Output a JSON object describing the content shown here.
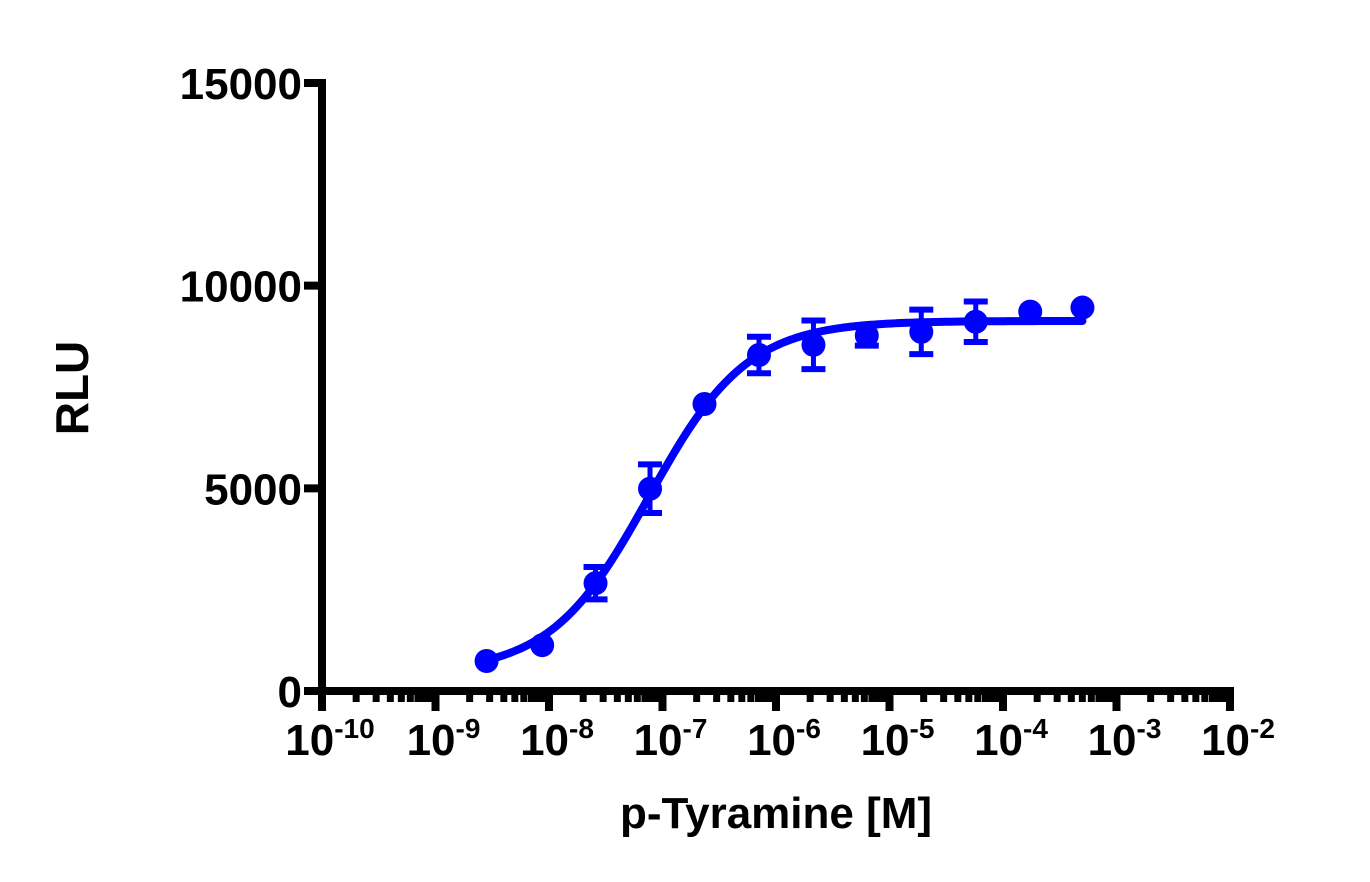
{
  "chart_data": {
    "type": "scatter",
    "subtype": "dose-response with fitted sigmoid curve and error bars",
    "title": "",
    "xlabel": "p-Tyramine [M]",
    "ylabel": "RLU",
    "xscale": "log",
    "xlim": [
      1e-10,
      0.01
    ],
    "ylim": [
      0,
      15000
    ],
    "x_ticks": [
      {
        "exp": -10,
        "base": "10",
        "sup": "-10"
      },
      {
        "exp": -9,
        "base": "10",
        "sup": "-9"
      },
      {
        "exp": -8,
        "base": "10",
        "sup": "-8"
      },
      {
        "exp": -7,
        "base": "10",
        "sup": "-7"
      },
      {
        "exp": -6,
        "base": "10",
        "sup": "-6"
      },
      {
        "exp": -5,
        "base": "10",
        "sup": "-5"
      },
      {
        "exp": -4,
        "base": "10",
        "sup": "-4"
      },
      {
        "exp": -3,
        "base": "10",
        "sup": "-3"
      },
      {
        "exp": -2,
        "base": "10",
        "sup": "-2"
      }
    ],
    "y_ticks": [
      0,
      5000,
      10000,
      15000
    ],
    "grid": false,
    "legend": null,
    "color": "#0000ff",
    "series": [
      {
        "name": "p-Tyramine",
        "log_x": [
          -8.55,
          -8.06,
          -7.59,
          -7.11,
          -6.63,
          -6.15,
          -5.67,
          -5.2,
          -4.72,
          -4.24,
          -3.76,
          -3.3
        ],
        "x": [
          2.8e-09,
          8.7e-09,
          2.6e-08,
          7.8e-08,
          2.3e-07,
          7.1e-07,
          2.1e-06,
          6.3e-06,
          1.9e-05,
          5.8e-05,
          0.00017,
          0.0005
        ],
        "values": [
          740,
          1130,
          2660,
          4990,
          7080,
          8290,
          8540,
          8770,
          8860,
          9110,
          9360,
          9460
        ],
        "error": [
          0,
          0,
          400,
          600,
          0,
          450,
          600,
          250,
          550,
          500,
          0,
          0
        ]
      }
    ],
    "fit": {
      "model": "sigmoidal dose-response",
      "bottom": 450,
      "top": 9130,
      "logEC50": -7.12,
      "hill": 1.0,
      "log_x_range": [
        -8.55,
        -3.3
      ]
    }
  }
}
